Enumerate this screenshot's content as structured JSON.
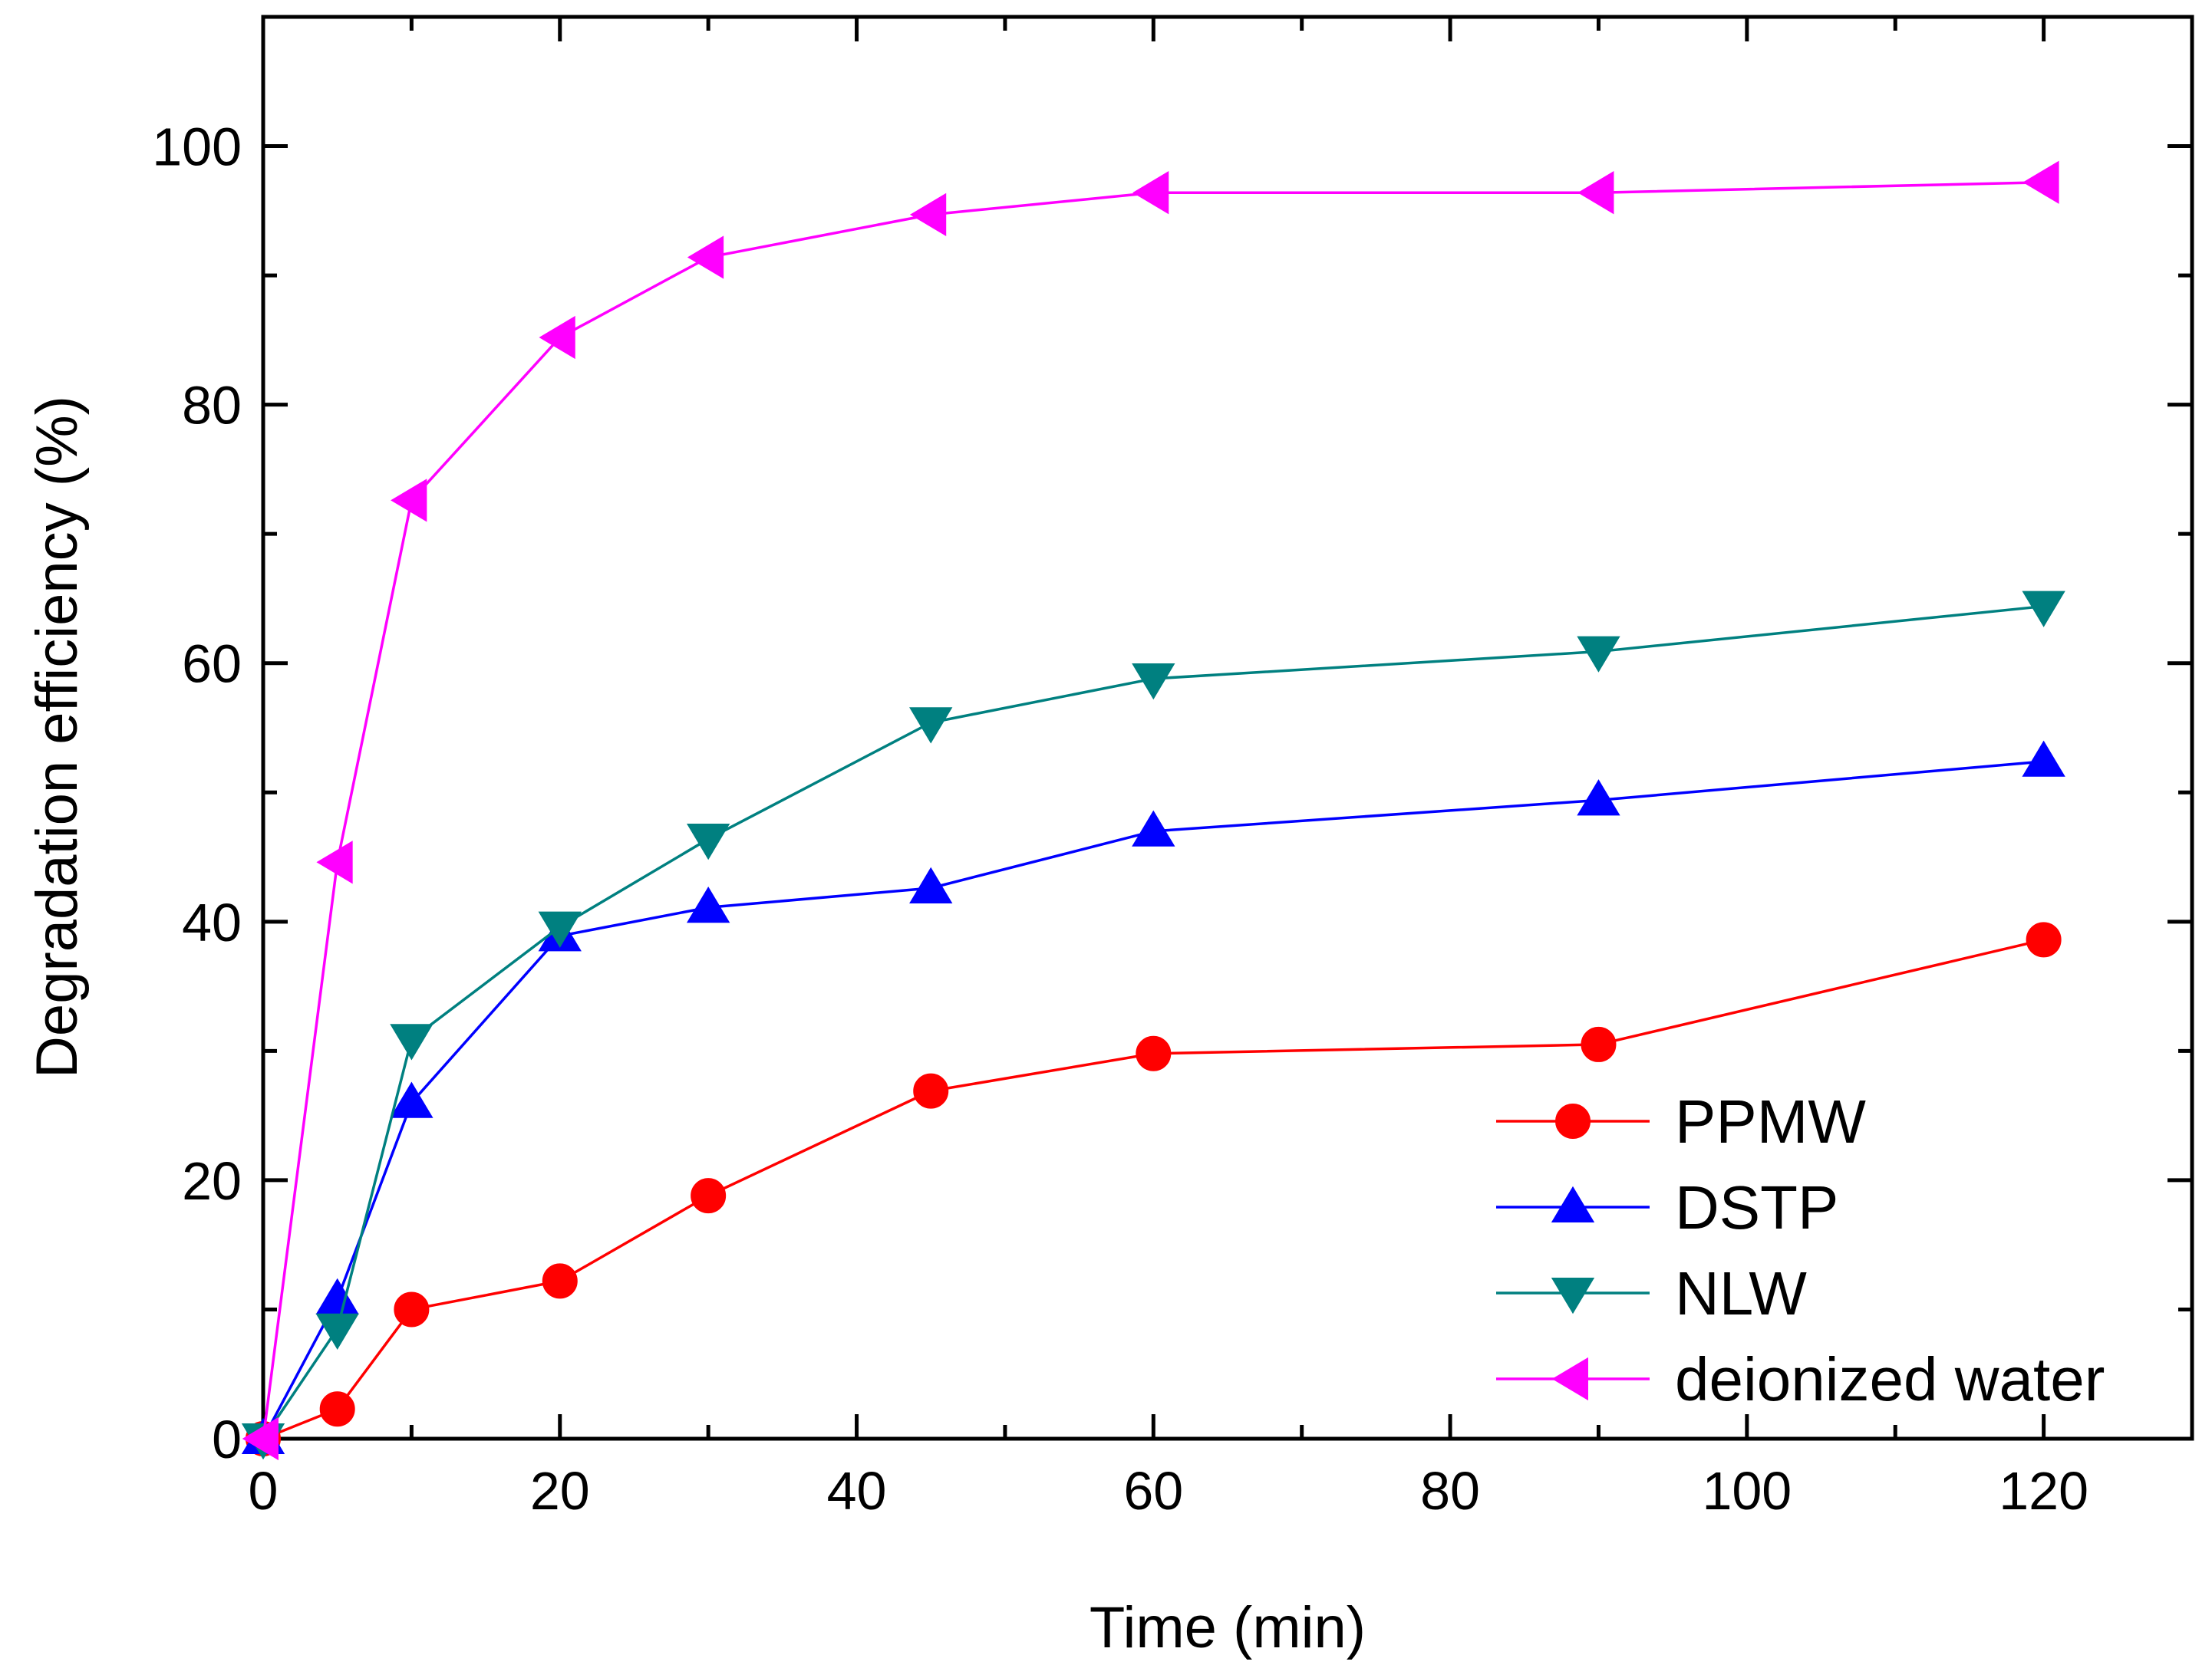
{
  "chart_data": {
    "type": "line",
    "title": "",
    "xlabel": "Time (min)",
    "ylabel": "Degradation efficiency (%)",
    "xlim": [
      0,
      130
    ],
    "ylim": [
      0,
      110
    ],
    "xticks": [
      0,
      20,
      40,
      60,
      80,
      100,
      120
    ],
    "xtick_labels": [
      "0",
      "20",
      "40",
      "60",
      "80",
      "100",
      "120"
    ],
    "yticks": [
      0,
      20,
      40,
      60,
      80,
      100
    ],
    "ytick_labels": [
      "0",
      "20",
      "40",
      "60",
      "80",
      "100"
    ],
    "x_minor_step": 10,
    "y_minor_step": 10,
    "grid": false,
    "legend_position": "bottom-right",
    "series": [
      {
        "name": "PPMW",
        "color": "#ff0000",
        "marker": "circle",
        "x": [
          0,
          5,
          10,
          20,
          30,
          45,
          60,
          90,
          120
        ],
        "values": [
          0,
          2.3,
          10,
          12.2,
          18.8,
          26.9,
          29.8,
          30.5,
          38.6
        ]
      },
      {
        "name": "DSTP",
        "color": "#0000ff",
        "marker": "triangle-up",
        "x": [
          0,
          5,
          10,
          20,
          30,
          45,
          60,
          90,
          120
        ],
        "values": [
          0,
          10.8,
          26,
          38.9,
          41.1,
          42.6,
          47,
          49.4,
          52.4
        ]
      },
      {
        "name": "NLW",
        "color": "#008080",
        "marker": "triangle-down",
        "x": [
          0,
          5,
          10,
          20,
          30,
          45,
          60,
          90,
          120
        ],
        "values": [
          0,
          8.5,
          30.9,
          39.6,
          46.4,
          55.4,
          58.8,
          60.9,
          64.4
        ]
      },
      {
        "name": "deionized water",
        "color": "#ff00ff",
        "marker": "triangle-left",
        "x": [
          0,
          5,
          10,
          20,
          30,
          45,
          60,
          90,
          120
        ],
        "values": [
          0,
          44.6,
          72.6,
          85.2,
          91.4,
          94.7,
          96.4,
          96.4,
          97.2
        ]
      }
    ]
  }
}
